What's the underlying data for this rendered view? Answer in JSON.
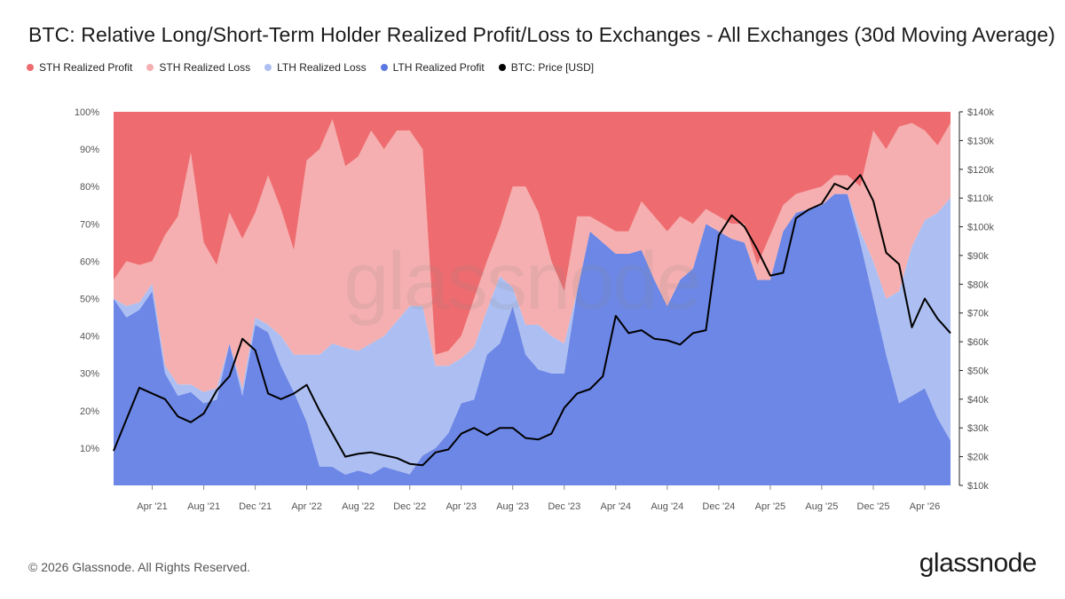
{
  "chart_data": {
    "type": "area",
    "title": "BTC: Relative Long/Short-Term Holder Realized Profit/Loss to Exchanges - All Exchanges (30d Moving Average)",
    "xlabel": "",
    "ylabel_left": "",
    "ylabel_right": "",
    "x_ticks": [
      "Apr '21",
      "Aug '21",
      "Dec '21",
      "Apr '22",
      "Aug '22",
      "Dec '22",
      "Apr '23",
      "Aug '23",
      "Dec '23",
      "Apr '24",
      "Aug '24",
      "Dec '24",
      "Apr '25",
      "Aug '25",
      "Dec '25",
      "Apr '26"
    ],
    "y_left_ticks": [
      "10%",
      "20%",
      "30%",
      "40%",
      "50%",
      "60%",
      "70%",
      "80%",
      "90%",
      "100%"
    ],
    "y_right_ticks": [
      "$10k",
      "$20k",
      "$30k",
      "$40k",
      "$50k",
      "$60k",
      "$70k",
      "$80k",
      "$90k",
      "$100k",
      "$110k",
      "$120k",
      "$130k",
      "$140k"
    ],
    "y_left_range": [
      0,
      100
    ],
    "y_right_range": [
      10000,
      140000
    ],
    "x_range": [
      "Jan '21",
      "Jun '26"
    ],
    "stack_order_bottom_to_top": [
      "LTH Realized Profit",
      "LTH Realized Loss",
      "STH Realized Loss",
      "STH Realized Profit"
    ],
    "x": [
      "Jan '21",
      "Feb '21",
      "Mar '21",
      "Apr '21",
      "May '21",
      "Jun '21",
      "Jul '21",
      "Aug '21",
      "Sep '21",
      "Oct '21",
      "Nov '21",
      "Dec '21",
      "Jan '22",
      "Feb '22",
      "Mar '22",
      "Apr '22",
      "May '22",
      "Jun '22",
      "Jul '22",
      "Aug '22",
      "Sep '22",
      "Oct '22",
      "Nov '22",
      "Dec '22",
      "Jan '23",
      "Feb '23",
      "Mar '23",
      "Apr '23",
      "May '23",
      "Jun '23",
      "Jul '23",
      "Aug '23",
      "Sep '23",
      "Oct '23",
      "Nov '23",
      "Dec '23",
      "Jan '24",
      "Feb '24",
      "Mar '24",
      "Apr '24",
      "May '24",
      "Jun '24",
      "Jul '24",
      "Aug '24",
      "Sep '24",
      "Oct '24",
      "Nov '24",
      "Dec '24",
      "Jan '25",
      "Feb '25",
      "Mar '25",
      "Apr '25",
      "May '25",
      "Jun '25",
      "Jul '25",
      "Aug '25",
      "Sep '25",
      "Oct '25",
      "Nov '25",
      "Dec '25",
      "Jan '26",
      "Feb '26",
      "Mar '26",
      "Apr '26",
      "May '26",
      "Jun '26"
    ],
    "series": [
      {
        "name": "LTH Realized Profit",
        "color": "#6d87e6",
        "values": [
          50,
          45,
          47,
          52,
          30,
          24,
          25,
          22,
          23,
          38,
          24,
          43,
          41,
          32,
          25,
          17,
          5,
          5,
          3,
          4,
          3,
          5,
          4,
          3,
          8,
          10,
          14,
          22,
          23,
          35,
          38,
          48,
          35,
          31,
          30,
          30,
          52,
          68,
          65,
          62,
          62,
          63,
          55,
          48,
          55,
          58,
          70,
          68,
          66,
          65,
          55,
          55,
          68,
          73,
          74,
          75,
          78,
          78,
          65,
          50,
          35,
          22,
          24,
          26,
          18,
          12
        ]
      },
      {
        "name": "LTH Realized Loss",
        "color": "#adbff2",
        "values": [
          0,
          3,
          2,
          2,
          2,
          3,
          2,
          3,
          3,
          0,
          2,
          2,
          2,
          8,
          10,
          18,
          30,
          33,
          35,
          32,
          35,
          35,
          40,
          45,
          40,
          22,
          18,
          12,
          14,
          12,
          18,
          5,
          8,
          12,
          10,
          8,
          0,
          0,
          0,
          0,
          0,
          0,
          0,
          0,
          0,
          0,
          0,
          0,
          0,
          0,
          0,
          0,
          0,
          0,
          0,
          0,
          0,
          0,
          3,
          10,
          15,
          30,
          40,
          45,
          55,
          65
        ]
      },
      {
        "name": "STH Realized Loss",
        "color": "#f5afb0",
        "values": [
          5,
          12,
          10,
          6,
          35,
          45,
          62,
          40,
          33,
          35,
          40,
          28,
          40,
          34,
          28,
          52,
          55,
          60,
          50,
          52,
          57,
          50,
          51,
          47,
          42,
          3,
          4,
          6,
          13,
          13,
          13,
          27,
          37,
          30,
          20,
          14,
          20,
          4,
          5,
          6,
          6,
          13,
          17,
          20,
          17,
          12,
          4,
          4,
          4,
          5,
          4,
          12,
          7,
          5,
          5,
          5,
          5,
          5,
          12,
          35,
          40,
          44,
          33,
          24,
          18,
          20
        ]
      },
      {
        "name": "STH Realized Profit",
        "color": "#ee6c6f",
        "values": [
          45,
          40,
          41,
          40,
          33,
          28,
          11,
          35,
          41,
          27,
          34,
          27,
          17,
          26,
          37,
          13,
          10,
          2,
          15,
          12,
          5,
          10,
          5,
          5,
          10,
          65,
          64,
          60,
          50,
          40,
          31,
          20,
          20,
          27,
          40,
          48,
          28,
          28,
          30,
          32,
          32,
          24,
          28,
          32,
          28,
          30,
          26,
          28,
          30,
          30,
          41,
          33,
          25,
          22,
          21,
          20,
          17,
          17,
          20,
          5,
          10,
          4,
          3,
          5,
          9,
          3
        ]
      }
    ],
    "price_series": {
      "name": "BTC: Price [USD]",
      "color": "#000000",
      "values": [
        22000,
        33000,
        44000,
        42000,
        40000,
        34000,
        32000,
        35000,
        43000,
        48000,
        61000,
        57000,
        42000,
        40000,
        42000,
        45000,
        36000,
        28000,
        20000,
        21000,
        21500,
        20500,
        19500,
        17500,
        17000,
        21500,
        22500,
        28000,
        30000,
        27500,
        30000,
        30000,
        26500,
        26000,
        28000,
        37000,
        42000,
        43500,
        48000,
        69000,
        63000,
        64000,
        61000,
        60500,
        59000,
        63000,
        64000,
        97000,
        104000,
        100000,
        92000,
        83000,
        84000,
        103000,
        106000,
        108000,
        115000,
        113000,
        118000,
        109000,
        91000,
        87000,
        65000,
        75000,
        68000,
        63000
      ]
    }
  },
  "legend": [
    {
      "label": "STH Realized Profit",
      "color": "#ee6c6f"
    },
    {
      "label": "STH Realized Loss",
      "color": "#f5afb0"
    },
    {
      "label": "LTH Realized Loss",
      "color": "#adbff2"
    },
    {
      "label": "LTH Realized Profit",
      "color": "#5b78e3"
    },
    {
      "label": "BTC: Price [USD]",
      "color": "#000000"
    }
  ],
  "watermark": "glassnode",
  "footer": {
    "copyright": "© 2026 Glassnode. All Rights Reserved.",
    "brand": "glassnode"
  }
}
